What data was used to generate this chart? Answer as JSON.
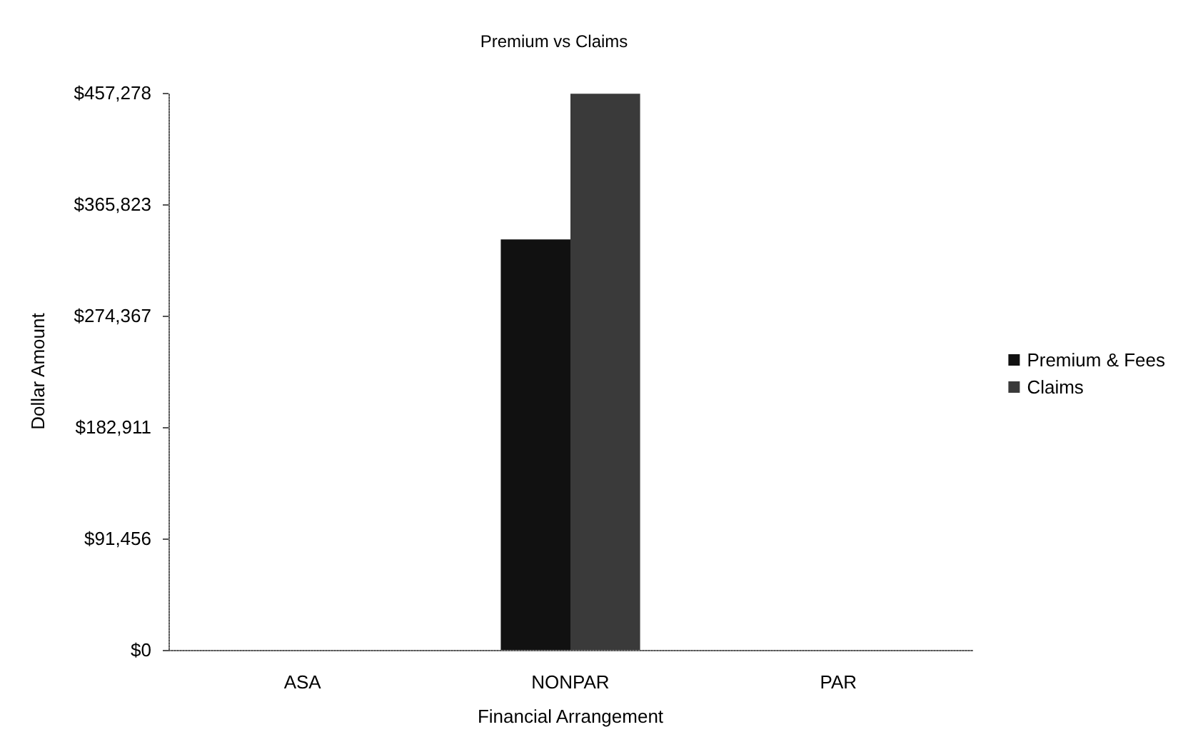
{
  "chart_data": {
    "type": "bar",
    "title": "Premium vs Claims",
    "xlabel": "Financial Arrangement",
    "ylabel": "Dollar Amount",
    "categories": [
      "ASA",
      "NONPAR",
      "PAR"
    ],
    "series": [
      {
        "name": "Premium & Fees",
        "color": "#111111",
        "values": [
          0,
          337000,
          0
        ]
      },
      {
        "name": "Claims",
        "color": "#3a3a3a",
        "values": [
          0,
          456500,
          0
        ]
      }
    ],
    "ylim": [
      0,
      457278
    ],
    "yticks": [
      {
        "value": 0,
        "label": "$0"
      },
      {
        "value": 91456,
        "label": "$91,456"
      },
      {
        "value": 182911,
        "label": "$182,911"
      },
      {
        "value": 274367,
        "label": "$274,367"
      },
      {
        "value": 365823,
        "label": "$365,823"
      },
      {
        "value": 457278,
        "label": "$457,278"
      }
    ],
    "grid": false,
    "legend": "right"
  }
}
